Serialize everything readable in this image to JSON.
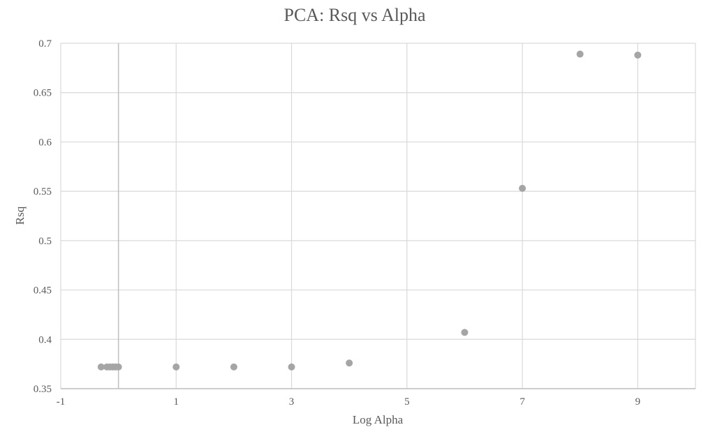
{
  "chart_data": {
    "type": "scatter",
    "title": "PCA: Rsq vs Alpha",
    "xlabel": "Log Alpha",
    "ylabel": "Rsq",
    "xlim": [
      -1,
      10
    ],
    "ylim": [
      0.35,
      0.7
    ],
    "x_major_step": 2,
    "y_major_step": 0.05,
    "x_tick_labels": [
      "-1",
      "1",
      "3",
      "5",
      "7",
      "9"
    ],
    "y_tick_labels": [
      "0.35",
      "0.4",
      "0.45",
      "0.5",
      "0.55",
      "0.6",
      "0.65",
      "0.7"
    ],
    "grid": true,
    "legend": "none",
    "colors": {
      "marker": "#a5a5a5",
      "gridline": "#d9d9d9",
      "axis": "#bfbfbf",
      "text": "#595959"
    },
    "series": [
      {
        "points": [
          {
            "x": -0.3,
            "y": 0.372
          },
          {
            "x": -0.2,
            "y": 0.372
          },
          {
            "x": -0.15,
            "y": 0.372
          },
          {
            "x": -0.1,
            "y": 0.372
          },
          {
            "x": -0.05,
            "y": 0.372
          },
          {
            "x": 0,
            "y": 0.372
          },
          {
            "x": 1,
            "y": 0.372
          },
          {
            "x": 2,
            "y": 0.372
          },
          {
            "x": 3,
            "y": 0.372
          },
          {
            "x": 4,
            "y": 0.376
          },
          {
            "x": 6,
            "y": 0.407
          },
          {
            "x": 7,
            "y": 0.553
          },
          {
            "x": 8,
            "y": 0.689
          },
          {
            "x": 9,
            "y": 0.688
          }
        ]
      }
    ]
  }
}
